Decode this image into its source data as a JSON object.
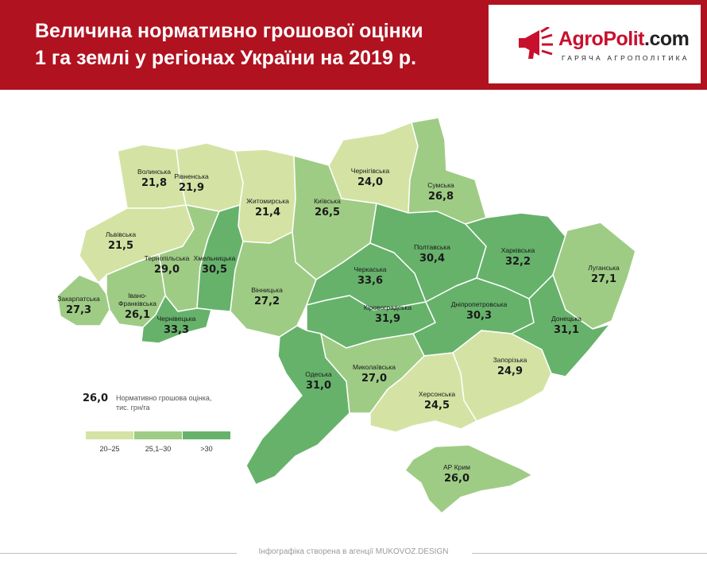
{
  "header": {
    "title_line1": "Величина нормативно грошової оцінки",
    "title_line2": "1 га землі у регіонах України на 2019 р."
  },
  "logo": {
    "name_main": "AgroPolit",
    "name_suffix": ".com",
    "tagline": "ГАРЯЧА АГРОПОЛІТИКА",
    "icon": "megaphone-icon"
  },
  "colors": {
    "header_bg": "#b01220",
    "class_low": "#d4e3a4",
    "class_mid": "#9fcc85",
    "class_high": "#66b26b"
  },
  "regions": [
    {
      "name": "Волинська",
      "value": "21,8",
      "class": "low"
    },
    {
      "name": "Рівненська",
      "value": "21,9",
      "class": "low"
    },
    {
      "name": "Житомирська",
      "value": "21,4",
      "class": "low"
    },
    {
      "name": "Київська",
      "value": "26,5",
      "class": "mid"
    },
    {
      "name": "Чернігівська",
      "value": "24,0",
      "class": "low"
    },
    {
      "name": "Сумська",
      "value": "26,8",
      "class": "mid"
    },
    {
      "name": "Львівська",
      "value": "21,5",
      "class": "low"
    },
    {
      "name": "Тернопільська",
      "value": "29,0",
      "class": "mid"
    },
    {
      "name": "Хмельницька",
      "value": "30,5",
      "class": "high"
    },
    {
      "name": "Вінницька",
      "value": "27,2",
      "class": "mid"
    },
    {
      "name": "Черкаська",
      "value": "33,6",
      "class": "high"
    },
    {
      "name": "Полтавська",
      "value": "30,4",
      "class": "high"
    },
    {
      "name": "Харківська",
      "value": "32,2",
      "class": "high"
    },
    {
      "name": "Луганська",
      "value": "27,1",
      "class": "mid"
    },
    {
      "name": "Закарпатська",
      "value": "27,3",
      "class": "mid"
    },
    {
      "name": "Івано-Франківська",
      "value": "26,1",
      "class": "mid"
    },
    {
      "name": "Чернівецька",
      "value": "33,3",
      "class": "high"
    },
    {
      "name": "Кіровоградська",
      "value": "31,9",
      "class": "high"
    },
    {
      "name": "Дніпропетровська",
      "value": "30,3",
      "class": "high"
    },
    {
      "name": "Донецька",
      "value": "31,1",
      "class": "high"
    },
    {
      "name": "Одеська",
      "value": "31,0",
      "class": "high"
    },
    {
      "name": "Миколаївська",
      "value": "27,0",
      "class": "mid"
    },
    {
      "name": "Запорізька",
      "value": "24,9",
      "class": "low"
    },
    {
      "name": "Херсонська",
      "value": "24,5",
      "class": "low"
    },
    {
      "name": "АР Крим",
      "value": "26,0",
      "class": "mid"
    }
  ],
  "legend": {
    "sample_value": "26,0",
    "description_line1": "Нормативно грошова оцінка,",
    "description_line2": "тис. грн/га",
    "ranges": [
      {
        "label": "20–25",
        "class": "low"
      },
      {
        "label": "25,1–30",
        "class": "mid"
      },
      {
        "label": ">30",
        "class": "high"
      }
    ]
  },
  "footer": {
    "credit": "Інфографіка створена в агенції MUKOVOZ.DESIGN"
  }
}
